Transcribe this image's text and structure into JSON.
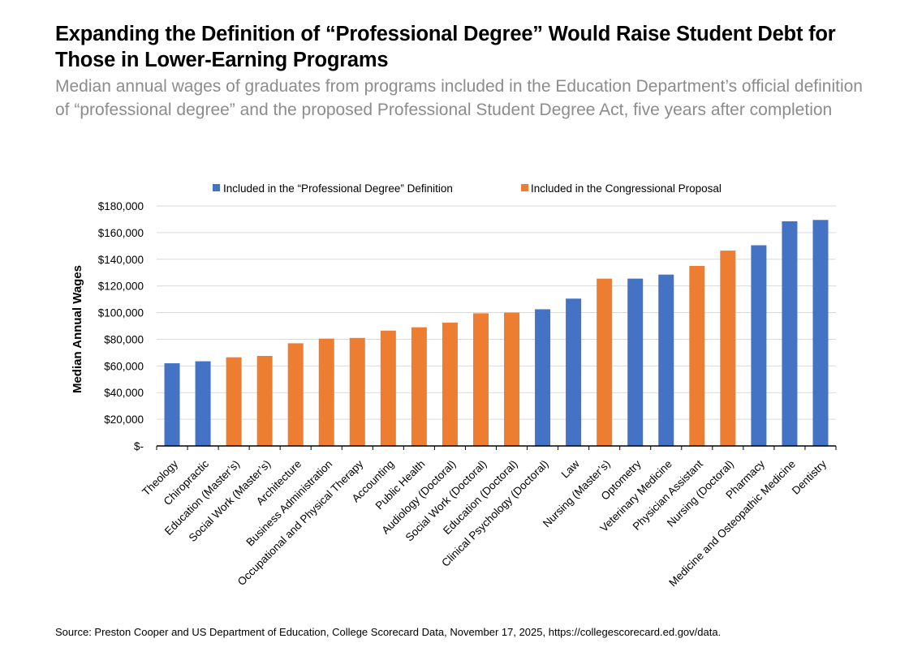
{
  "header": {
    "title": "Expanding the Definition of “Professional Degree” Would Raise Student Debt for Those in Lower-Earning Programs",
    "subtitle": "Median annual wages of graduates from programs included in the Education Department’s official definition of “professional degree” and the proposed Professional Student Degree Act, five years after completion"
  },
  "footer": {
    "source": "Source: Preston Cooper and US Department of Education, College Scorecard Data, November 17, 2025, https://collegescorecard.ed.gov/data."
  },
  "chart_data": {
    "type": "bar",
    "ylabel": "Median Annual Wages",
    "xlabel": "",
    "ylim": [
      0,
      180000
    ],
    "ytick_values": [
      0,
      20000,
      40000,
      60000,
      80000,
      100000,
      120000,
      140000,
      160000,
      180000
    ],
    "ytick_labels": [
      "$-",
      "$20,000",
      "$40,000",
      "$60,000",
      "$80,000",
      "$100,000",
      "$120,000",
      "$140,000",
      "$160,000",
      "$180,000"
    ],
    "grid": true,
    "legend_position": "top",
    "groups": [
      {
        "name": "Included in the “Professional Degree” Definition",
        "color": "#4472c4"
      },
      {
        "name": "Included in the Congressional Proposal",
        "color": "#ed7d31"
      }
    ],
    "categories": [
      "Theology",
      "Chiropractic",
      "Education (Master’s)",
      "Social Work (Master’s)",
      "Architecture",
      "Business Administration",
      "Occupational and Physical Therapy",
      "Accounting",
      "Public Health",
      "Audiology (Doctoral)",
      "Social Work (Doctoral)",
      "Education (Doctoral)",
      "Clinical Psychology (Doctoral)",
      "Law",
      "Nursing (Master’s)",
      "Optometry",
      "Veterinary Medicine",
      "Physician Assistant",
      "Nursing (Doctoral)",
      "Pharmacy",
      "Medicine and Osteopathic Medicine",
      "Dentistry"
    ],
    "values": [
      62000,
      63500,
      66500,
      67500,
      77000,
      80500,
      81000,
      86500,
      89000,
      92500,
      99500,
      100000,
      102500,
      110500,
      125500,
      125500,
      128500,
      135000,
      146500,
      150500,
      168500,
      169500
    ],
    "group_index": [
      0,
      0,
      1,
      1,
      1,
      1,
      1,
      1,
      1,
      1,
      1,
      1,
      0,
      0,
      1,
      0,
      0,
      1,
      1,
      0,
      0,
      0
    ]
  }
}
